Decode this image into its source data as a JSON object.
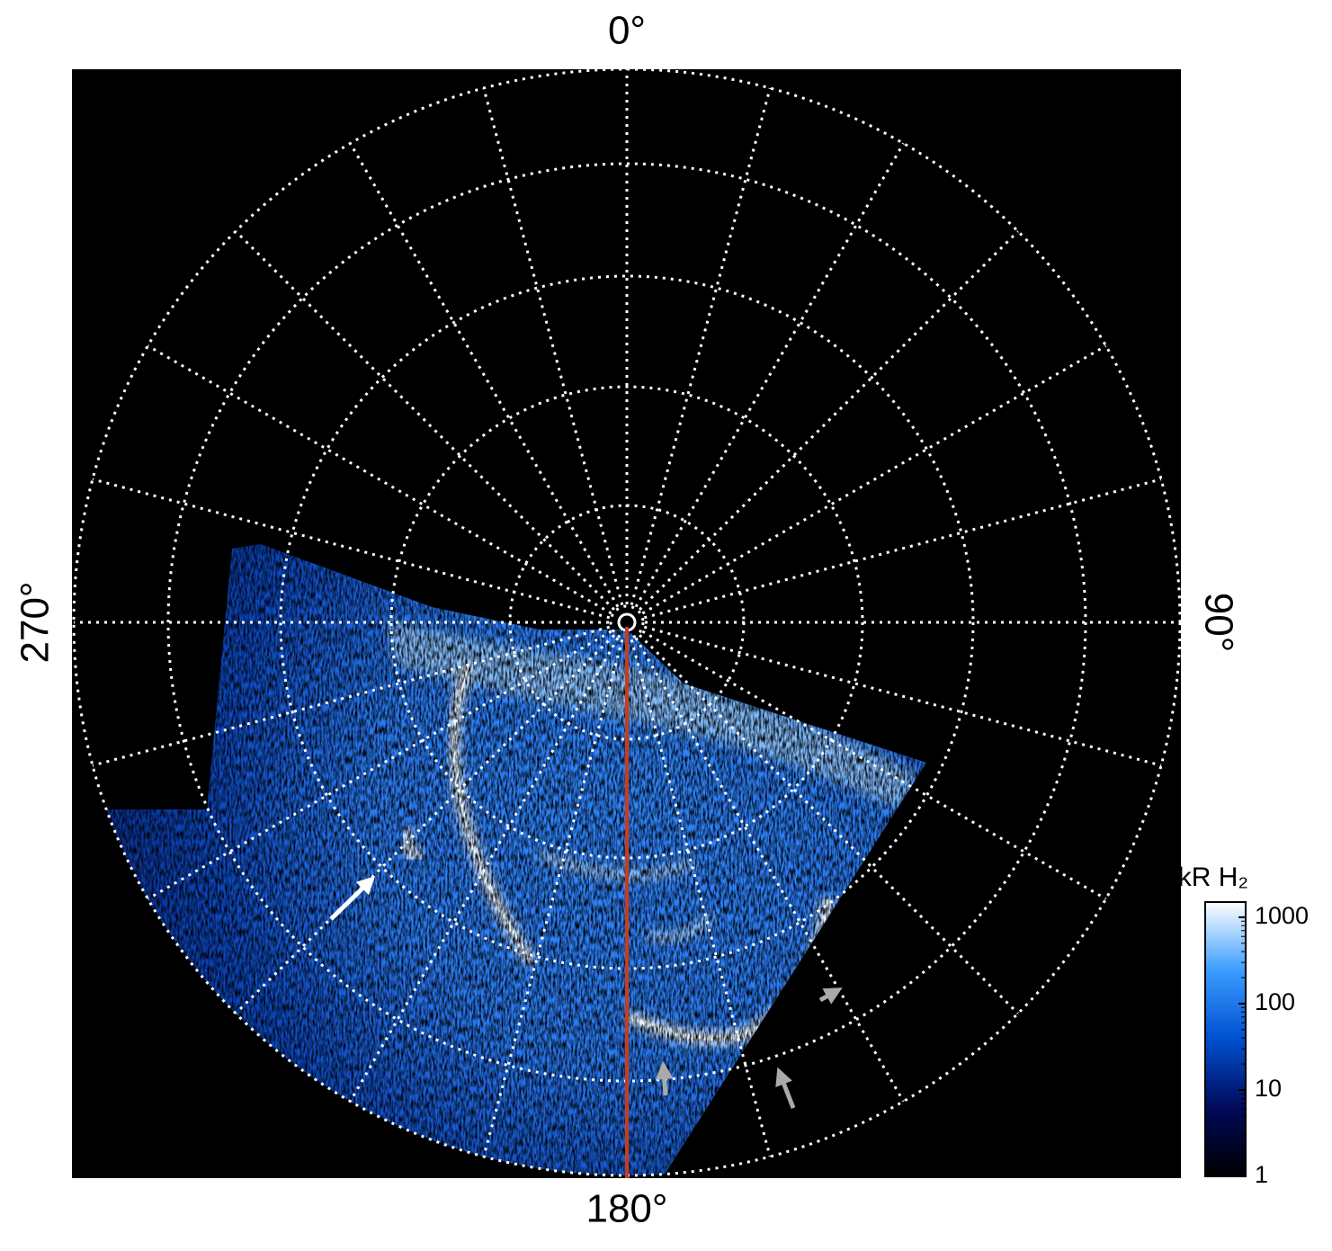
{
  "chart_data": {
    "type": "polar_image",
    "theta_labels": [
      {
        "value": 0,
        "label": "0°"
      },
      {
        "value": 90,
        "label": "90°"
      },
      {
        "value": 180,
        "label": "180°"
      },
      {
        "value": 270,
        "label": "270°"
      }
    ],
    "colorbar": {
      "title": "kR H₂",
      "scale": "log",
      "clim": [
        1,
        1500
      ],
      "ticks": [
        1,
        10,
        100,
        1000
      ],
      "colormap": [
        "#000000",
        "#000a5a",
        "#0050d0",
        "#3a9cff",
        "#ffffff"
      ]
    },
    "grid": true
  }
}
